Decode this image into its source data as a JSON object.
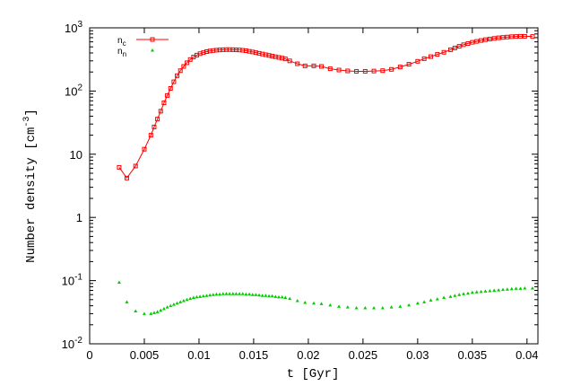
{
  "chart_data": {
    "type": "line",
    "xlabel": "t [Gyr]",
    "ylabel": "Number density [cm",
    "ylabel_exp": "-3",
    "ylabel_close": "]",
    "y_scale": "log",
    "xlim": [
      0,
      0.041
    ],
    "ylim": [
      0.01,
      1000
    ],
    "x_ticks": [
      {
        "value": 0,
        "label": "0"
      },
      {
        "value": 0.005,
        "label": "0.005"
      },
      {
        "value": 0.01,
        "label": "0.01"
      },
      {
        "value": 0.015,
        "label": "0.015"
      },
      {
        "value": 0.02,
        "label": "0.02"
      },
      {
        "value": 0.025,
        "label": "0.025"
      },
      {
        "value": 0.03,
        "label": "0.03"
      },
      {
        "value": 0.035,
        "label": "0.035"
      },
      {
        "value": 0.04,
        "label": "0.04"
      }
    ],
    "y_ticks": [
      {
        "value": 0.01,
        "base": "10",
        "exp": "-2"
      },
      {
        "value": 0.1,
        "base": "10",
        "exp": "-1"
      },
      {
        "value": 1,
        "base": "1",
        "exp": ""
      },
      {
        "value": 10,
        "base": "10",
        "exp": ""
      },
      {
        "value": 100,
        "base": "10",
        "exp": "2"
      },
      {
        "value": 1000,
        "base": "10",
        "exp": "3"
      }
    ],
    "legend_position": "top-left",
    "series": [
      {
        "name": "n",
        "name_sub": "c",
        "style": "linespoints",
        "marker": "square",
        "color": "#ff0000",
        "x": [
          0.0027,
          0.0034,
          0.0042,
          0.005,
          0.0056,
          0.0059,
          0.0062,
          0.0065,
          0.0068,
          0.0071,
          0.0074,
          0.0077,
          0.008,
          0.0083,
          0.0086,
          0.0089,
          0.0092,
          0.0095,
          0.0098,
          0.0101,
          0.0104,
          0.0107,
          0.011,
          0.0113,
          0.0116,
          0.0119,
          0.0122,
          0.0125,
          0.0128,
          0.0131,
          0.0134,
          0.0137,
          0.014,
          0.0143,
          0.0146,
          0.0149,
          0.0152,
          0.0155,
          0.0158,
          0.0161,
          0.0164,
          0.0167,
          0.017,
          0.0173,
          0.0176,
          0.0179,
          0.0183,
          0.019,
          0.0197,
          0.0205,
          0.0212,
          0.022,
          0.0228,
          0.0236,
          0.0244,
          0.0252,
          0.026,
          0.0268,
          0.0276,
          0.0284,
          0.0292,
          0.03,
          0.0306,
          0.0312,
          0.0318,
          0.0324,
          0.033,
          0.0334,
          0.0338,
          0.0342,
          0.0346,
          0.035,
          0.0354,
          0.0358,
          0.0362,
          0.0366,
          0.037,
          0.0374,
          0.0378,
          0.0382,
          0.0386,
          0.039,
          0.0394,
          0.0398,
          0.0405
        ],
        "y": [
          6.2,
          4.2,
          6.5,
          12,
          20,
          27,
          36,
          48,
          65,
          85,
          110,
          140,
          175,
          210,
          245,
          280,
          315,
          345,
          370,
          390,
          405,
          420,
          430,
          437,
          443,
          447,
          450,
          452,
          452,
          451,
          449,
          446,
          441,
          434,
          425,
          415,
          405,
          395,
          385,
          375,
          366,
          357,
          348,
          340,
          332,
          322,
          300,
          270,
          250,
          250,
          245,
          225,
          215,
          208,
          205,
          205,
          207,
          210,
          220,
          240,
          265,
          295,
          325,
          350,
          380,
          410,
          450,
          480,
          510,
          540,
          565,
          590,
          610,
          630,
          650,
          665,
          680,
          695,
          705,
          715,
          725,
          730,
          735,
          735,
          730
        ]
      },
      {
        "name": "n",
        "name_sub": "n",
        "style": "points",
        "marker": "triangle",
        "color": "#00cc00",
        "x": [
          0.0027,
          0.0034,
          0.0042,
          0.005,
          0.0056,
          0.0059,
          0.0062,
          0.0065,
          0.0068,
          0.0071,
          0.0074,
          0.0077,
          0.008,
          0.0083,
          0.0086,
          0.0089,
          0.0092,
          0.0095,
          0.0098,
          0.0101,
          0.0104,
          0.0107,
          0.011,
          0.0113,
          0.0116,
          0.0119,
          0.0122,
          0.0125,
          0.0128,
          0.0131,
          0.0134,
          0.0137,
          0.014,
          0.0143,
          0.0146,
          0.0149,
          0.0152,
          0.0155,
          0.0158,
          0.0161,
          0.0164,
          0.0167,
          0.017,
          0.0173,
          0.0176,
          0.0179,
          0.0183,
          0.019,
          0.0197,
          0.0205,
          0.0212,
          0.022,
          0.0228,
          0.0236,
          0.0244,
          0.0252,
          0.026,
          0.0268,
          0.0276,
          0.0284,
          0.0292,
          0.03,
          0.0306,
          0.0312,
          0.0318,
          0.0324,
          0.033,
          0.0334,
          0.0338,
          0.0342,
          0.0346,
          0.035,
          0.0354,
          0.0358,
          0.0362,
          0.0366,
          0.037,
          0.0374,
          0.0378,
          0.0382,
          0.0386,
          0.039,
          0.0394,
          0.0398,
          0.0405
        ],
        "y": [
          0.094,
          0.046,
          0.033,
          0.03,
          0.03,
          0.031,
          0.032,
          0.034,
          0.036,
          0.038,
          0.04,
          0.042,
          0.044,
          0.046,
          0.048,
          0.05,
          0.052,
          0.054,
          0.055,
          0.056,
          0.057,
          0.058,
          0.059,
          0.06,
          0.061,
          0.061,
          0.062,
          0.062,
          0.062,
          0.062,
          0.062,
          0.062,
          0.062,
          0.061,
          0.061,
          0.06,
          0.06,
          0.059,
          0.058,
          0.058,
          0.057,
          0.057,
          0.056,
          0.055,
          0.055,
          0.054,
          0.052,
          0.048,
          0.045,
          0.044,
          0.043,
          0.041,
          0.039,
          0.038,
          0.037,
          0.037,
          0.037,
          0.037,
          0.038,
          0.039,
          0.041,
          0.044,
          0.046,
          0.049,
          0.051,
          0.054,
          0.056,
          0.058,
          0.06,
          0.062,
          0.063,
          0.065,
          0.066,
          0.067,
          0.068,
          0.069,
          0.07,
          0.071,
          0.072,
          0.073,
          0.074,
          0.075,
          0.075,
          0.076,
          0.076
        ]
      }
    ]
  }
}
